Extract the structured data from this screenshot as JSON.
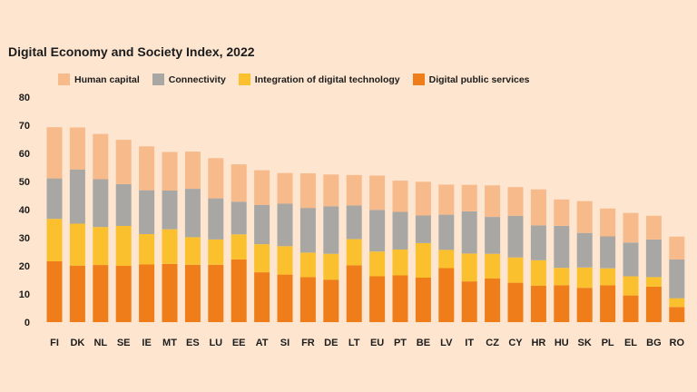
{
  "chart_data": {
    "type": "bar",
    "stacked": true,
    "title": "Digital Economy and Society Index, 2022",
    "xlabel": "",
    "ylabel": "",
    "ylim": [
      0,
      80
    ],
    "yticks": [
      0,
      10,
      20,
      30,
      40,
      50,
      60,
      70,
      80
    ],
    "grid": false,
    "legend_position": "top",
    "categories": [
      "FI",
      "DK",
      "NL",
      "SE",
      "IE",
      "MT",
      "ES",
      "LU",
      "EE",
      "AT",
      "SI",
      "FR",
      "DE",
      "LT",
      "EU",
      "PT",
      "BE",
      "LV",
      "IT",
      "CZ",
      "CY",
      "HR",
      "HU",
      "SK",
      "PL",
      "EL",
      "BG",
      "RO"
    ],
    "series": [
      {
        "name": "Digital public services",
        "color": "#ee7d1a",
        "values": [
          21.6,
          20.1,
          20.3,
          20.0,
          20.5,
          20.7,
          20.4,
          20.4,
          22.3,
          17.7,
          16.9,
          16.0,
          15.1,
          20.2,
          16.3,
          16.6,
          15.8,
          19.2,
          14.5,
          15.5,
          14.0,
          12.9,
          13.1,
          12.2,
          13.1,
          9.5,
          12.6,
          5.4
        ]
      },
      {
        "name": "Integration of digital technology",
        "color": "#fbc02d",
        "values": [
          15.1,
          14.9,
          13.5,
          14.2,
          10.8,
          12.3,
          9.8,
          9.0,
          8.9,
          10.0,
          10.1,
          8.7,
          9.2,
          9.3,
          8.8,
          9.2,
          12.3,
          6.5,
          9.9,
          8.8,
          9.0,
          9.1,
          6.2,
          7.2,
          6.0,
          6.8,
          3.4,
          3.1
        ]
      },
      {
        "name": "Connectivity",
        "color": "#a9a7a4",
        "values": [
          14.4,
          19.3,
          17.0,
          14.9,
          15.6,
          13.8,
          17.2,
          14.6,
          11.6,
          13.9,
          15.1,
          15.9,
          16.9,
          12.0,
          14.8,
          13.4,
          9.8,
          12.5,
          15.0,
          13.1,
          14.8,
          12.4,
          14.9,
          12.3,
          11.4,
          12.0,
          13.4,
          13.8
        ]
      },
      {
        "name": "Human capital",
        "color": "#f7ba8a",
        "values": [
          18.2,
          14.9,
          16.1,
          15.7,
          15.6,
          13.7,
          13.2,
          14.3,
          13.3,
          12.4,
          10.9,
          12.3,
          11.3,
          10.8,
          12.2,
          11.1,
          12.0,
          10.7,
          9.4,
          11.2,
          10.2,
          12.8,
          9.4,
          11.3,
          9.9,
          10.5,
          8.4,
          8.1
        ]
      }
    ]
  }
}
